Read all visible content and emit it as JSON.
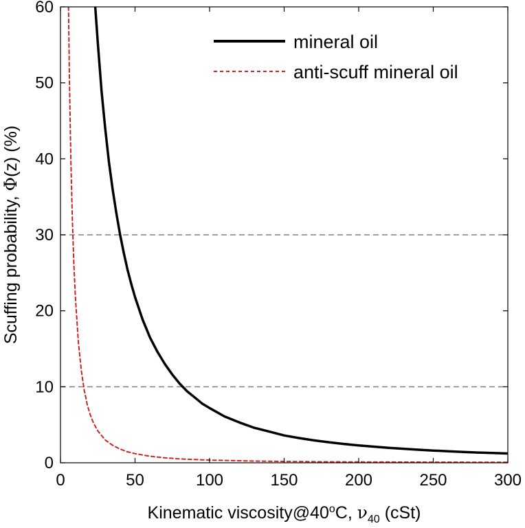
{
  "chart_data": {
    "type": "line",
    "title": "",
    "xlabel": {
      "prefix": "Kinematic viscosity@40",
      "superscript": "o",
      "mid": "C, ",
      "symbol": "ν",
      "subscript": "40",
      "suffix": " (cSt)"
    },
    "ylabel": {
      "prefix": "Scuffing probability, ",
      "symbol": "Φ",
      "suffix": "(z) (%)"
    },
    "xlim": [
      0,
      300
    ],
    "ylim": [
      0,
      60
    ],
    "xticks": [
      "0",
      "50",
      "100",
      "150",
      "200",
      "250",
      "300"
    ],
    "yticks": [
      "0",
      "10",
      "20",
      "30",
      "40",
      "50",
      "60"
    ],
    "grid": false,
    "legend_position": "top-right",
    "reference_lines": [
      {
        "y": 30,
        "style": "dashed",
        "color": "#808080"
      },
      {
        "y": 10,
        "style": "dashed",
        "color": "#808080"
      }
    ],
    "series": [
      {
        "name": "mineral oil",
        "color": "#000000",
        "style": "solid",
        "x": [
          23.3,
          25,
          27.5,
          30,
          32.5,
          35,
          37.5,
          40,
          42.5,
          45,
          47.5,
          50,
          55,
          60,
          65,
          70,
          75,
          80,
          85,
          90,
          95,
          100,
          110,
          120,
          130,
          140,
          150,
          160,
          170,
          180,
          190,
          200,
          210,
          220,
          230,
          240,
          250,
          260,
          270,
          280,
          290,
          300
        ],
        "y": [
          60.0,
          55.3,
          49.0,
          44.0,
          39.6,
          36.0,
          32.8,
          30.0,
          27.6,
          25.4,
          23.5,
          21.8,
          18.9,
          16.5,
          14.6,
          13.0,
          11.6,
          10.4,
          9.4,
          8.6,
          7.8,
          7.2,
          6.1,
          5.3,
          4.6,
          4.1,
          3.6,
          3.25,
          2.95,
          2.7,
          2.48,
          2.29,
          2.12,
          1.97,
          1.84,
          1.72,
          1.61,
          1.52,
          1.43,
          1.35,
          1.28,
          1.22
        ]
      },
      {
        "name": "anti-scuff mineral oil",
        "color": "#cc2222",
        "style": "dashed",
        "x": [
          5.4,
          6,
          7,
          8,
          9,
          10,
          12,
          14,
          16,
          18,
          20,
          22,
          25,
          30,
          35,
          40,
          45,
          50,
          60,
          70,
          80,
          100,
          125,
          150,
          175,
          200,
          250,
          300
        ],
        "y": [
          60.0,
          50.6,
          39.5,
          31.7,
          26.1,
          21.8,
          15.9,
          12.1,
          9.5,
          7.6,
          6.3,
          5.3,
          4.2,
          3.0,
          2.3,
          1.8,
          1.45,
          1.2,
          0.86,
          0.65,
          0.51,
          0.35,
          0.24,
          0.17,
          0.14,
          0.11,
          0.08,
          0.06
        ]
      }
    ]
  }
}
